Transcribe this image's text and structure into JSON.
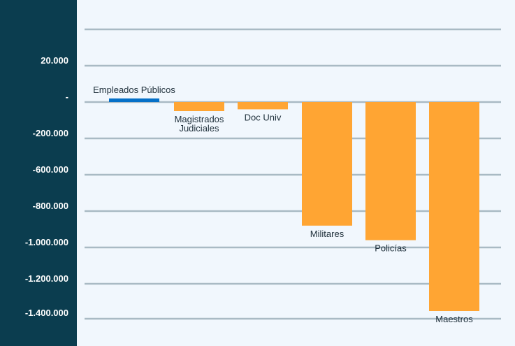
{
  "chart_data": {
    "type": "bar",
    "title": "",
    "xlabel": "",
    "ylabel": "",
    "y_tick_labels": [
      "20.000",
      "-",
      "-200.000",
      "-600.000",
      "-800.000",
      "-1.000.000",
      "-1.200.000",
      "-1.400.000"
    ],
    "categories": [
      {
        "label_lines": [
          "Empleados Públicos"
        ],
        "value": 20000,
        "color": "#0570c8"
      },
      {
        "label_lines": [
          "Magistrados",
          "Judiciales"
        ],
        "value": -50000,
        "color": "#ffa533"
      },
      {
        "label_lines": [
          "Doc Univ"
        ],
        "value": -40000,
        "color": "#ffa533"
      },
      {
        "label_lines": [
          "Militares"
        ],
        "value": -680000,
        "color": "#ffa533"
      },
      {
        "label_lines": [
          "Policías"
        ],
        "value": -760000,
        "color": "#ffa533"
      },
      {
        "label_lines": [
          "Maestros"
        ],
        "value": -1150000,
        "color": "#ffa533"
      }
    ],
    "grid": true,
    "colors": {
      "axis_panel": "#0b3d4f",
      "plot_background": "#f1f7fd",
      "gridline": "#a9bac4",
      "positive_bar": "#0570c8",
      "negative_bar": "#ffa533"
    }
  }
}
